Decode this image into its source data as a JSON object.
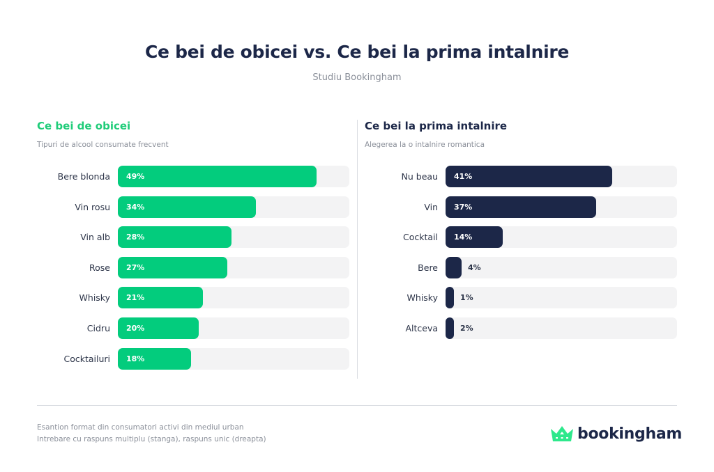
{
  "header": {
    "title": "Ce bei de obicei vs. Ce bei la prima intalnire",
    "subtitle": "Studiu Bookingham"
  },
  "colors": {
    "green": "#03cc7d",
    "navy": "#1c2748",
    "track": "#f3f3f4"
  },
  "chart_data": [
    {
      "type": "bar",
      "orientation": "horizontal",
      "title": "Ce bei de obicei",
      "subtitle": "Tipuri de alcool consumate frecvent",
      "categories": [
        "Bere blonda",
        "Vin rosu",
        "Vin alb",
        "Rose",
        "Whisky",
        "Cidru",
        "Cocktailuri"
      ],
      "values": [
        49,
        34,
        28,
        27,
        21,
        20,
        18
      ],
      "labels": [
        "49%",
        "34%",
        "28%",
        "27%",
        "21%",
        "20%",
        "18%"
      ],
      "unit": "%",
      "xlim": [
        0,
        57
      ],
      "color": "#03cc7d"
    },
    {
      "type": "bar",
      "orientation": "horizontal",
      "title": "Ce bei la prima intalnire",
      "subtitle": "Alegerea la o intalnire romantica",
      "categories": [
        "Nu beau",
        "Vin",
        "Cocktail",
        "Bere",
        "Whisky",
        "Altceva"
      ],
      "values": [
        41,
        37,
        14,
        4,
        1,
        2
      ],
      "labels": [
        "41%",
        "37%",
        "14%",
        "4%",
        "1%",
        "2%"
      ],
      "unit": "%",
      "xlim": [
        0,
        57
      ],
      "color": "#1c2748"
    }
  ],
  "footer": {
    "note1": "Esantion format din consumatori activi din mediul urban",
    "note2": "Intrebare cu raspuns multiplu (stanga), raspuns unic (dreapta)",
    "logo_text": "bookingham",
    "logo_icon": "crown-icon"
  }
}
